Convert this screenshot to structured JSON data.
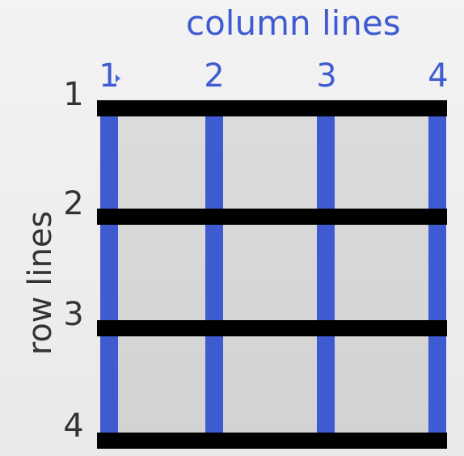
{
  "title_columns": "column lines",
  "title_rows": "row lines",
  "column_numbers": [
    "1",
    "2",
    "3",
    "4"
  ],
  "row_numbers": [
    "1",
    "2",
    "3",
    "4"
  ],
  "colors": {
    "column_line": "#3f5bd1",
    "row_line": "#000000",
    "cell_fill": "#d8d8d8",
    "background": "#eeeeee",
    "row_text": "#333333"
  }
}
